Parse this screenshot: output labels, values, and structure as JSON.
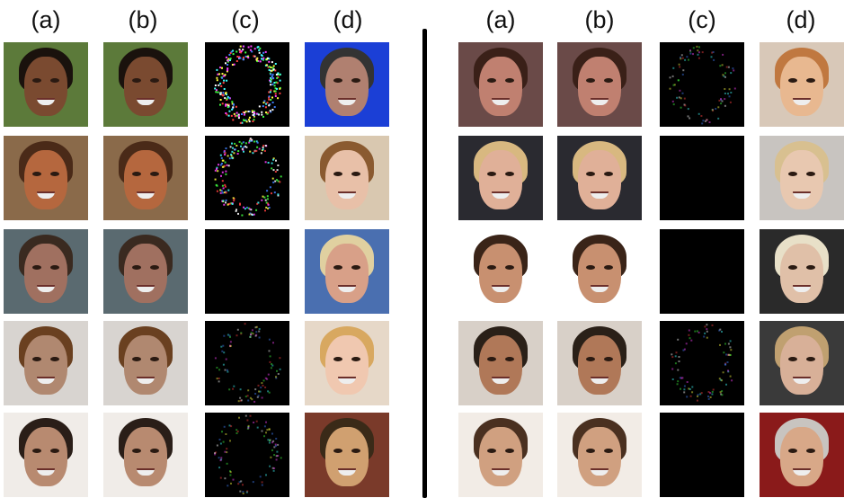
{
  "headers": {
    "left": [
      "(a)",
      "(b)",
      "(c)",
      "(d)"
    ],
    "right": [
      "(a)",
      "(b)",
      "(c)",
      "(d)"
    ]
  },
  "left_rows": [
    {
      "a": {
        "bg": "#5c7a3a",
        "skin": "#7a4a30",
        "hair": "#1a120d"
      },
      "b": {
        "bg": "#5c7a3a",
        "skin": "#7a4a30",
        "hair": "#1a120d"
      },
      "c": {
        "noise": "strong"
      },
      "d": {
        "bg": "#1b3fd6",
        "skin": "#b08070",
        "hair": "#333333"
      }
    },
    {
      "a": {
        "bg": "#8a6a4a",
        "skin": "#b5673e",
        "hair": "#4a2a18"
      },
      "b": {
        "bg": "#8a6a4a",
        "skin": "#b5673e",
        "hair": "#4a2a18"
      },
      "c": {
        "noise": "medium"
      },
      "d": {
        "bg": "#d9c8b0",
        "skin": "#e8c0a8",
        "hair": "#8a5a30"
      }
    },
    {
      "a": {
        "bg": "#5a6a70",
        "skin": "#a07060",
        "hair": "#3a2a20"
      },
      "b": {
        "bg": "#5a6a70",
        "skin": "#a07060",
        "hair": "#3a2a20"
      },
      "c": {
        "noise": "none"
      },
      "d": {
        "bg": "#4a6fb0",
        "skin": "#d8a088",
        "hair": "#e0d0a0"
      }
    },
    {
      "a": {
        "bg": "#d8d4d0",
        "skin": "#b08870",
        "hair": "#6a4020"
      },
      "b": {
        "bg": "#d8d4d0",
        "skin": "#b08870",
        "hair": "#6a4020"
      },
      "c": {
        "noise": "faint"
      },
      "d": {
        "bg": "#e6d8c8",
        "skin": "#f0c8b0",
        "hair": "#d8a860"
      }
    },
    {
      "a": {
        "bg": "#f0ece8",
        "skin": "#b88a70",
        "hair": "#2a1e18"
      },
      "b": {
        "bg": "#f0ece8",
        "skin": "#b88a70",
        "hair": "#2a1e18"
      },
      "c": {
        "noise": "faint"
      },
      "d": {
        "bg": "#7a3a2a",
        "skin": "#d0a070",
        "hair": "#3a2a18"
      }
    }
  ],
  "right_rows": [
    {
      "a": {
        "bg": "#6a4a48",
        "skin": "#c08070",
        "hair": "#3a2018"
      },
      "b": {
        "bg": "#6a4a48",
        "skin": "#c08070",
        "hair": "#3a2018"
      },
      "c": {
        "noise": "faint"
      },
      "d": {
        "bg": "#d8c8b8",
        "skin": "#e8b890",
        "hair": "#c07840"
      }
    },
    {
      "a": {
        "bg": "#2a2a30",
        "skin": "#e0b098",
        "hair": "#d8b880"
      },
      "b": {
        "bg": "#2a2a30",
        "skin": "#e0b098",
        "hair": "#d8b880"
      },
      "c": {
        "noise": "none"
      },
      "d": {
        "bg": "#c8c4c0",
        "skin": "#e8c8b0",
        "hair": "#d8c090"
      }
    },
    {
      "a": {
        "bg": "#ffffff",
        "skin": "#c89070",
        "hair": "#3a2418"
      },
      "b": {
        "bg": "#ffffff",
        "skin": "#c89070",
        "hair": "#3a2418"
      },
      "c": {
        "noise": "none"
      },
      "d": {
        "bg": "#2a2a2a",
        "skin": "#e0c0a8",
        "hair": "#e8e0c8"
      }
    },
    {
      "a": {
        "bg": "#d8d0c8",
        "skin": "#b07858",
        "hair": "#2a2018"
      },
      "b": {
        "bg": "#d8d0c8",
        "skin": "#b07858",
        "hair": "#2a2018"
      },
      "c": {
        "noise": "faint"
      },
      "d": {
        "bg": "#3a3a3a",
        "skin": "#d8b098",
        "hair": "#c0a070"
      }
    },
    {
      "a": {
        "bg": "#f2ece6",
        "skin": "#d0a080",
        "hair": "#4a3020"
      },
      "b": {
        "bg": "#f2ece6",
        "skin": "#d0a080",
        "hair": "#4a3020"
      },
      "c": {
        "noise": "none"
      },
      "d": {
        "bg": "#8a1a1a",
        "skin": "#d8a888",
        "hair": "#c8c4c0"
      }
    }
  ]
}
